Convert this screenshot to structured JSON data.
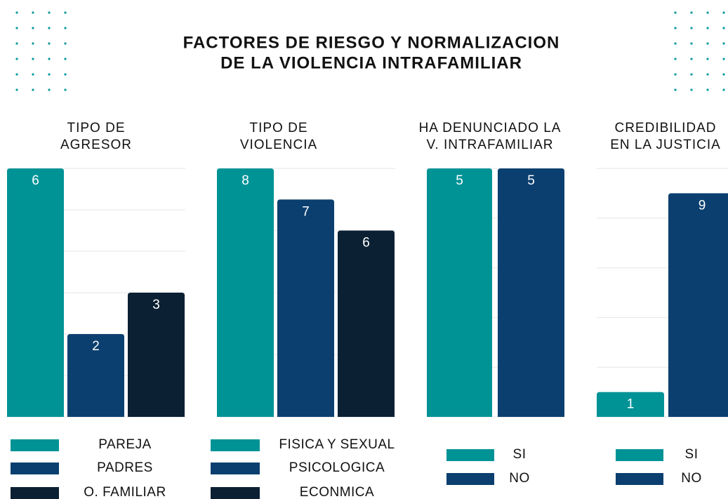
{
  "title": [
    "FACTORES DE RIESGO Y NORMALIZACION",
    "DE LA VIOLENCIA INTRAFAMILIAR"
  ],
  "chart_data": [
    {
      "type": "bar",
      "title": [
        "TIPO DE",
        "AGRESOR"
      ],
      "categories": [
        "PAREJA",
        "PADRES",
        "O. FAMILIAR"
      ],
      "values": [
        6,
        2,
        3
      ],
      "colors": [
        "#009396",
        "#0b3f6f",
        "#0b2033"
      ],
      "ylim": [
        0,
        6
      ],
      "yticks": [
        0,
        1,
        2,
        3,
        4,
        5,
        6
      ],
      "grid": true
    },
    {
      "type": "bar",
      "title": [
        "TIPO DE",
        "VIOLENCIA"
      ],
      "categories": [
        "FISICA Y SEXUAL",
        "PSICOLOGICA",
        "ECONMICA"
      ],
      "values": [
        8,
        7,
        6
      ],
      "colors": [
        "#009396",
        "#0b3f6f",
        "#0b2033"
      ],
      "ylim": [
        0,
        8
      ],
      "yticks": [
        0,
        2,
        4,
        6,
        8
      ],
      "grid": true
    },
    {
      "type": "bar",
      "title": [
        "HA DENUNCIADO LA",
        "V. INTRAFAMILIAR"
      ],
      "categories": [
        "SI",
        "NO"
      ],
      "values": [
        5,
        5
      ],
      "colors": [
        "#009396",
        "#0b3f6f"
      ],
      "ylim": [
        0,
        5
      ],
      "yticks": [
        0,
        1,
        2,
        3,
        4,
        5
      ],
      "grid": true
    },
    {
      "type": "bar",
      "title": [
        "CREDIBILIDAD",
        "EN LA JUSTICIA"
      ],
      "categories": [
        "SI",
        "NO"
      ],
      "values": [
        1,
        9
      ],
      "colors": [
        "#009396",
        "#0b3f6f"
      ],
      "ylim": [
        0,
        10
      ],
      "yticks": [
        0,
        2,
        4,
        6,
        8,
        10
      ],
      "grid": true
    }
  ]
}
